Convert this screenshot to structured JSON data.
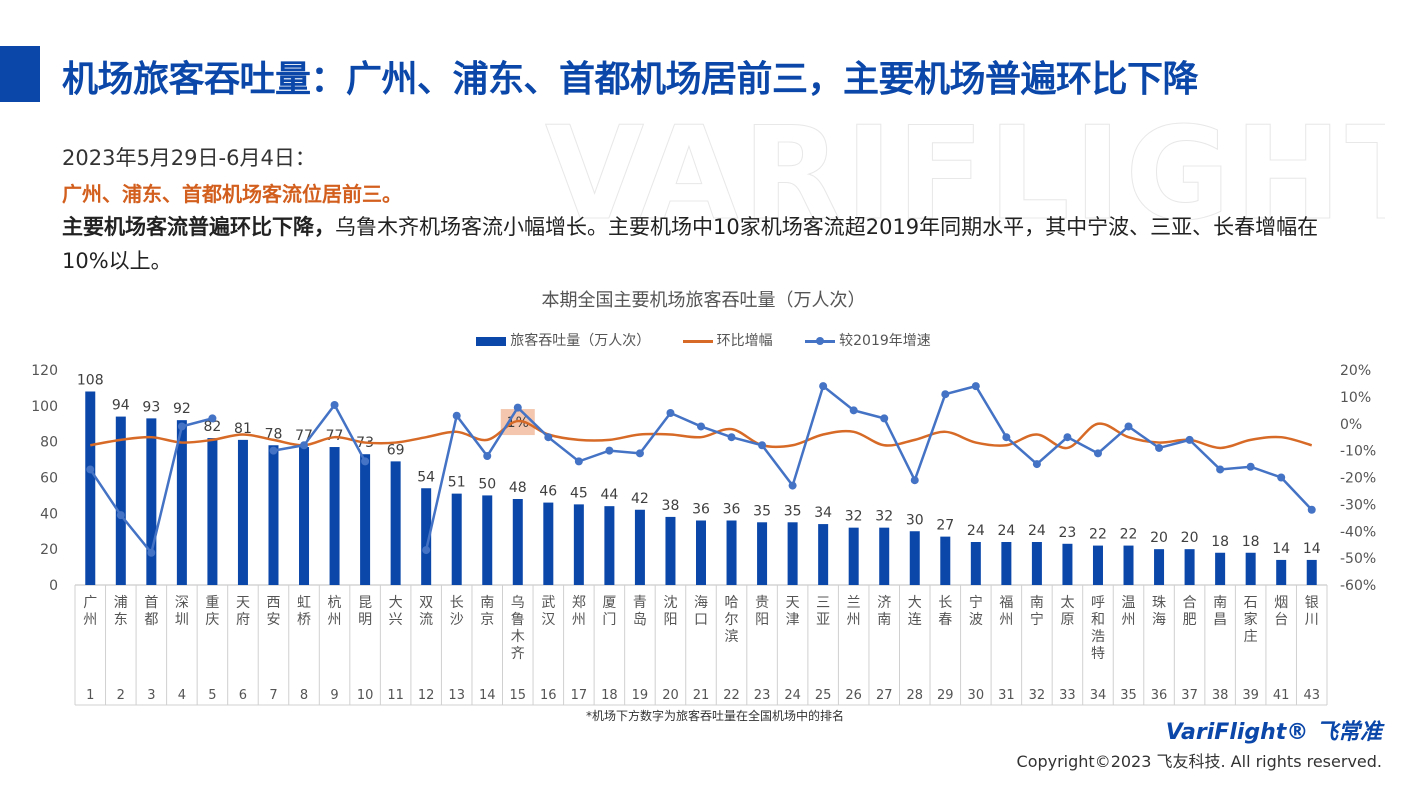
{
  "title": "机场旅客吞吐量：广州、浦东、首都机场居前三，主要机场普遍环比下降",
  "watermark": "VARIFLIGHT",
  "date_line": "2023年5月29日-6月4日：",
  "highlight": "广州、浦东、首都机场客流位居前三。",
  "summary_bold": "主要机场客流普遍环比下降，",
  "summary_rest": "乌鲁木齐机场客流小幅增长。主要机场中10家机场客流超2019年同期水平，其中宁波、三亚、长春增幅在10%以上。",
  "footnote": "*机场下方数字为旅客吞吐量在全国机场中的排名",
  "brand": "VariFlight® 飞常准",
  "copyright": "Copyright©2023 飞友科技. All rights reserved.",
  "colors": {
    "bar": "#0a47a9",
    "mom": "#d66a26",
    "vs2019": "#4472c4",
    "annotation_bg": "#f4c6ae"
  },
  "chart_data": {
    "type": "bar",
    "title": "本期全国主要机场旅客吞吐量（万人次）",
    "legend": [
      "旅客吞吐量（万人次）",
      "环比增幅",
      "较2019年增速"
    ],
    "legend_position": "top",
    "categories": [
      "广州",
      "浦东",
      "首都",
      "深圳",
      "重庆",
      "天府",
      "西安",
      "虹桥",
      "杭州",
      "昆明",
      "大兴",
      "双流",
      "长沙",
      "南京",
      "乌鲁木齐",
      "武汉",
      "郑州",
      "厦门",
      "青岛",
      "沈阳",
      "海口",
      "哈尔滨",
      "贵阳",
      "天津",
      "三亚",
      "兰州",
      "济南",
      "大连",
      "长春",
      "宁波",
      "福州",
      "南宁",
      "太原",
      "呼和浩特",
      "温州",
      "珠海",
      "合肥",
      "南昌",
      "石家庄",
      "烟台",
      "银川"
    ],
    "ranks": [
      "1",
      "2",
      "3",
      "4",
      "5",
      "6",
      "7",
      "8",
      "9",
      "10",
      "11",
      "12",
      "13",
      "14",
      "15",
      "16",
      "17",
      "18",
      "19",
      "20",
      "21",
      "22",
      "23",
      "24",
      "25",
      "26",
      "27",
      "28",
      "29",
      "30",
      "31",
      "32",
      "33",
      "34",
      "35",
      "36",
      "37",
      "38",
      "39",
      "41",
      "43"
    ],
    "series": [
      {
        "name": "旅客吞吐量（万人次）",
        "axis": "left",
        "type": "bar",
        "values": [
          108,
          94,
          93,
          92,
          82,
          81,
          78,
          77,
          77,
          73,
          69,
          54,
          51,
          50,
          48,
          46,
          45,
          44,
          42,
          38,
          36,
          36,
          35,
          35,
          34,
          32,
          32,
          30,
          27,
          24,
          24,
          24,
          23,
          22,
          22,
          20,
          20,
          18,
          18,
          14,
          14
        ]
      },
      {
        "name": "环比增幅",
        "axis": "right",
        "type": "line",
        "unit": "%",
        "values": [
          -8,
          -6,
          -5,
          -7,
          -6,
          -4,
          -6,
          -8,
          -5,
          -7,
          -7,
          -5,
          -3,
          -6,
          1,
          -4,
          -6,
          -6,
          -4,
          -4,
          -5,
          -2,
          -8,
          -8,
          -4,
          -3,
          -8,
          -6,
          -3,
          -7,
          -8,
          -4,
          -9,
          0,
          -5,
          -7,
          -6,
          -9,
          -6,
          -5,
          -8
        ]
      },
      {
        "name": "较2019年增速",
        "axis": "right",
        "type": "line",
        "unit": "%",
        "values": [
          -17,
          -34,
          -48,
          -1,
          2,
          null,
          -10,
          -8,
          7,
          -14,
          null,
          -47,
          3,
          -12,
          6,
          -5,
          -14,
          -10,
          -11,
          4,
          -1,
          -5,
          -8,
          -23,
          14,
          5,
          2,
          -21,
          11,
          14,
          -5,
          -15,
          -5,
          -11,
          -1,
          -9,
          -6,
          -17,
          -16,
          -20,
          -32
        ]
      }
    ],
    "annotation": {
      "category": "乌鲁木齐",
      "text": "1%"
    },
    "y_left": {
      "min": 0,
      "max": 120,
      "ticks": [
        0,
        20,
        40,
        60,
        80,
        100,
        120
      ]
    },
    "y_right": {
      "min": -60,
      "max": 20,
      "ticks": [
        "-60%",
        "-50%",
        "-40%",
        "-30%",
        "-20%",
        "-10%",
        "0%",
        "10%",
        "20%"
      ]
    },
    "grid": false
  }
}
